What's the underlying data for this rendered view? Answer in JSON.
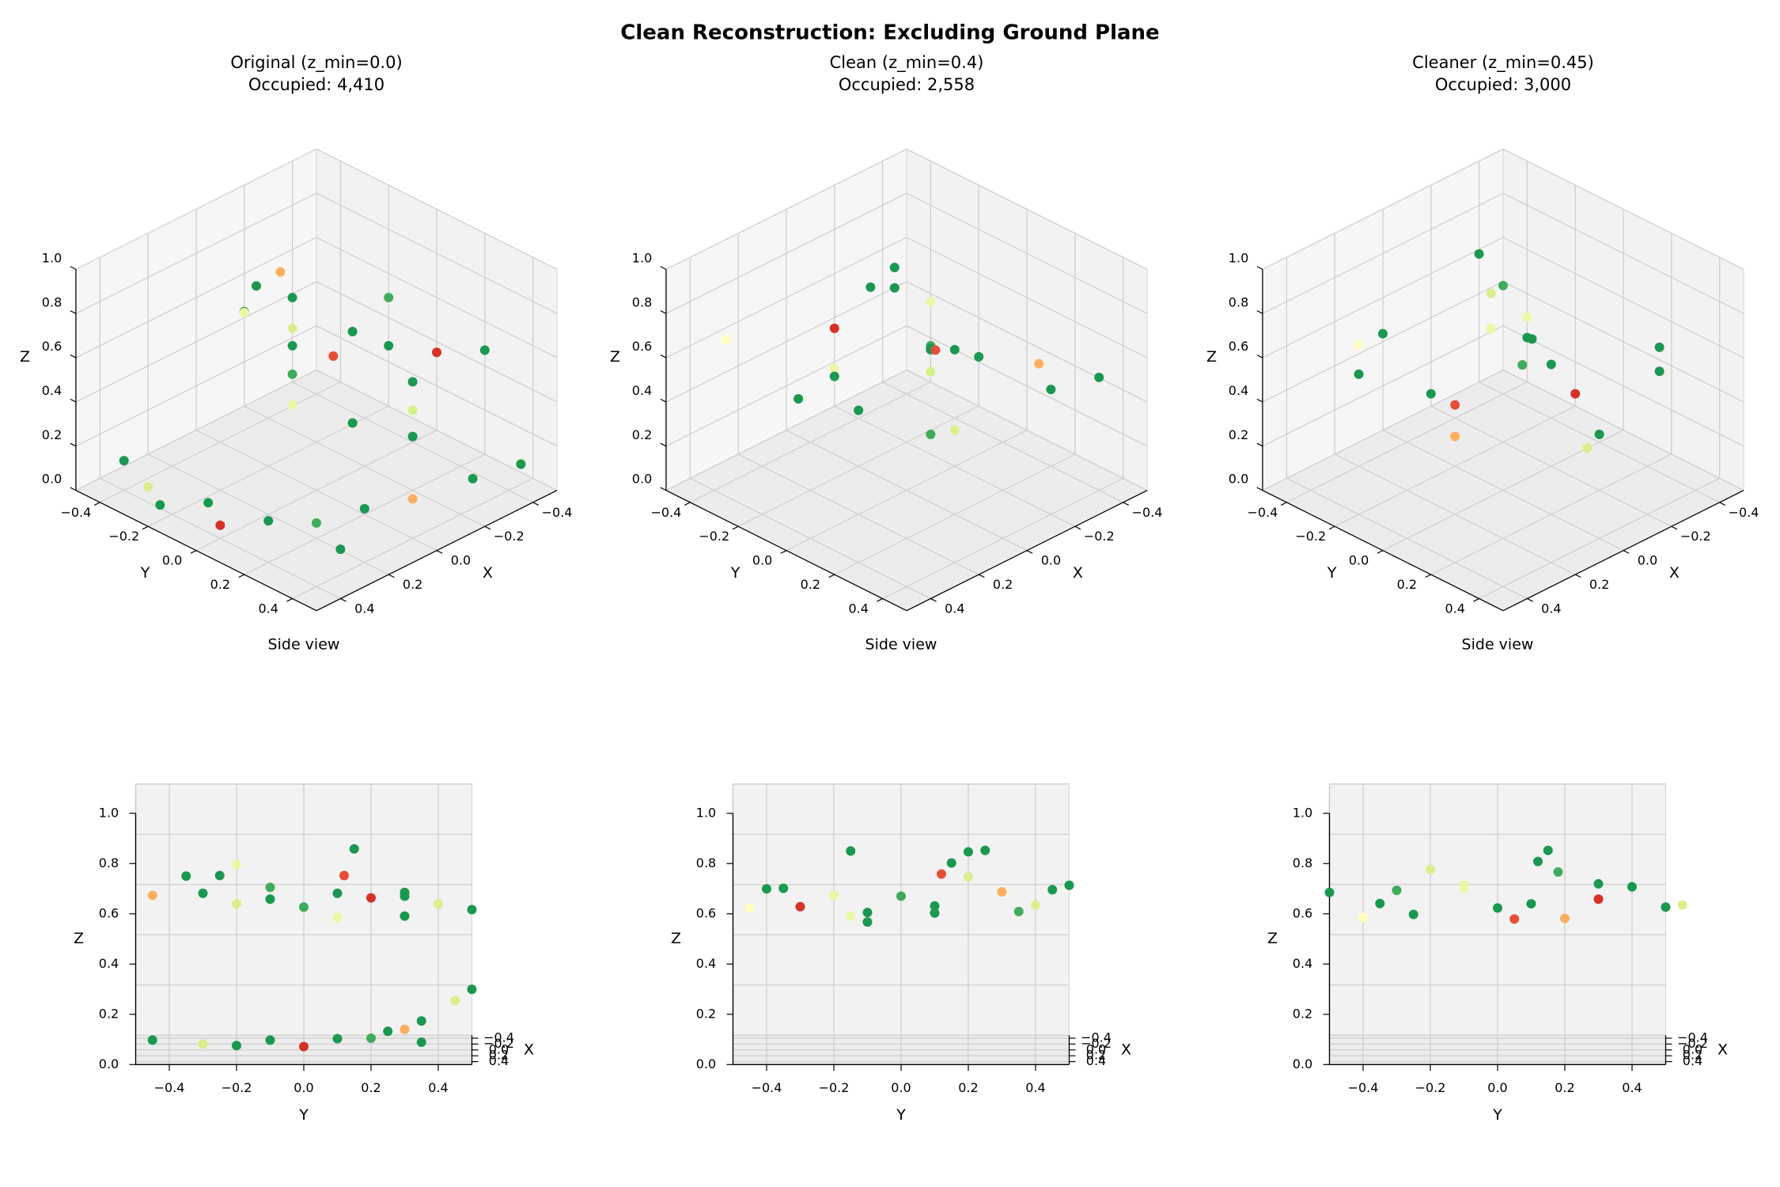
{
  "title": "Clean Reconstruction: Excluding Ground Plane",
  "colormap": [
    "#a50026",
    "#d73027",
    "#f46d43",
    "#fdae61",
    "#fee08b",
    "#ffffbf",
    "#d9ef8b",
    "#a6d96a",
    "#66bd63",
    "#1a9850",
    "#006837"
  ],
  "chart_data": [
    {
      "type": "scatter3d",
      "title": "Original (z_min=0.0)",
      "subtitle": "Occupied: 4,410",
      "xlabel": "X",
      "ylabel": "Y",
      "zlabel": "Z",
      "views": [
        {
          "elev": 30,
          "azim": 45
        },
        {
          "elev": 5,
          "azim": 0,
          "title": "Side view"
        }
      ],
      "xlim": [
        -0.5,
        0.5
      ],
      "ylim": [
        -0.5,
        0.5
      ],
      "zlim": [
        0,
        1
      ],
      "xticks": [
        {
          "value": -0.4,
          "label": "−0.4"
        },
        {
          "value": -0.2,
          "label": "−0.2"
        },
        {
          "value": 0,
          "label": "0.0"
        },
        0.2,
        0.4
      ],
      "yticks": [
        {
          "value": -0.4,
          "label": "−0.4"
        },
        {
          "value": -0.2,
          "label": "−0.2"
        },
        {
          "value": 0,
          "label": "0.0"
        },
        0.2,
        0.4
      ],
      "zticks": [
        {
          "value": 0,
          "label": "0.0"
        },
        0.2,
        0.4,
        0.6,
        0.8,
        {
          "value": 1,
          "label": "1.0"
        }
      ],
      "x": [
        -0.3,
        -0.2,
        -0.1,
        0.0,
        0.1,
        -0.2,
        -0.3,
        -0.1,
        0.0,
        0.1,
        -0.4,
        -0.4,
        0.05,
        0.1,
        0.0,
        0.05,
        -0.1,
        0.15,
        0.2,
        0.35,
        0.4,
        0.35,
        0.4,
        0.3,
        0.2,
        0.05,
        -0.1,
        -0.3,
        -0.4,
        -0.35,
        0.45,
        0.25
      ],
      "y": [
        -0.45,
        -0.3,
        -0.2,
        -0.1,
        0.0,
        0.1,
        0.2,
        0.3,
        0.4,
        0.5,
        -0.1,
        0.3,
        -0.25,
        -0.2,
        0.15,
        0.12,
        -0.35,
        0.3,
        0.1,
        -0.45,
        -0.3,
        -0.1,
        0.0,
        0.1,
        0.2,
        0.25,
        0.3,
        0.35,
        0.45,
        0.5,
        -0.2,
        0.35
      ],
      "z": [
        0.58,
        0.6,
        0.57,
        0.6,
        0.58,
        0.6,
        0.57,
        0.6,
        0.58,
        0.57,
        0.6,
        0.58,
        0.7,
        0.75,
        0.8,
        0.7,
        0.68,
        0.55,
        0.55,
        0.08,
        0.07,
        0.08,
        0.06,
        0.08,
        0.07,
        0.08,
        0.07,
        0.08,
        0.15,
        0.2,
        0.07,
        0.06
      ],
      "c": [
        0.3,
        0.9,
        0.6,
        0.9,
        0.85,
        0.9,
        0.1,
        0.9,
        0.6,
        0.9,
        0.85,
        0.9,
        0.9,
        0.55,
        0.9,
        0.15,
        0.9,
        0.9,
        0.55,
        0.9,
        0.6,
        0.9,
        0.1,
        0.9,
        0.85,
        0.9,
        0.3,
        0.9,
        0.6,
        0.9,
        0.9,
        0.9
      ]
    },
    {
      "type": "scatter3d",
      "title": "Clean (z_min=0.4)",
      "subtitle": "Occupied: 2,558",
      "xlabel": "X",
      "ylabel": "Y",
      "zlabel": "Z",
      "views": [
        {
          "elev": 30,
          "azim": 45
        },
        {
          "elev": 5,
          "azim": 0,
          "title": "Side view"
        }
      ],
      "xlim": [
        -0.5,
        0.5
      ],
      "ylim": [
        -0.5,
        0.5
      ],
      "zlim": [
        0,
        1
      ],
      "xticks": [
        {
          "value": -0.4,
          "label": "−0.4"
        },
        {
          "value": -0.2,
          "label": "−0.2"
        },
        {
          "value": 0,
          "label": "0.0"
        },
        0.2,
        0.4
      ],
      "yticks": [
        {
          "value": -0.4,
          "label": "−0.4"
        },
        {
          "value": -0.2,
          "label": "−0.2"
        },
        {
          "value": 0,
          "label": "0.0"
        },
        0.2,
        0.4
      ],
      "zticks": [
        {
          "value": 0,
          "label": "0.0"
        },
        0.2,
        0.4,
        0.6,
        0.8,
        {
          "value": 1,
          "label": "1.0"
        }
      ],
      "x": [
        -0.35,
        -0.3,
        -0.2,
        -0.1,
        0.0,
        0.1,
        0.2,
        0.3,
        0.35,
        -0.25,
        -0.15,
        0.05,
        0.15,
        0.25,
        0.0,
        -0.1,
        0.1,
        0.05,
        -0.3,
        0.3,
        0.2,
        -0.2
      ],
      "y": [
        -0.4,
        -0.2,
        -0.35,
        0.0,
        -0.3,
        0.2,
        0.4,
        0.1,
        -0.1,
        0.3,
        0.45,
        0.15,
        -0.15,
        0.35,
        0.12,
        -0.15,
        0.2,
        0.25,
        0.5,
        -0.45,
        -0.1,
        0.1
      ],
      "z": [
        0.6,
        0.58,
        0.62,
        0.6,
        0.57,
        0.8,
        0.6,
        0.58,
        0.55,
        0.6,
        0.62,
        0.75,
        0.55,
        0.58,
        0.7,
        0.78,
        0.7,
        0.8,
        0.62,
        0.6,
        0.57,
        0.55
      ],
      "c": [
        0.9,
        0.55,
        0.9,
        0.85,
        0.1,
        0.9,
        0.6,
        0.9,
        0.9,
        0.3,
        0.9,
        0.9,
        0.55,
        0.85,
        0.15,
        0.9,
        0.6,
        0.9,
        0.9,
        0.5,
        0.9,
        0.9
      ]
    },
    {
      "type": "scatter3d",
      "title": "Cleaner (z_min=0.45)",
      "subtitle": "Occupied: 3,000",
      "xlabel": "X",
      "ylabel": "Y",
      "zlabel": "Z",
      "views": [
        {
          "elev": 30,
          "azim": 45
        },
        {
          "elev": 5,
          "azim": 0,
          "title": "Side view"
        }
      ],
      "xlim": [
        -0.5,
        0.5
      ],
      "ylim": [
        -0.5,
        0.5
      ],
      "zlim": [
        0,
        1
      ],
      "xticks": [
        {
          "value": -0.4,
          "label": "−0.4"
        },
        {
          "value": -0.2,
          "label": "−0.2"
        },
        {
          "value": 0,
          "label": "0.0"
        },
        0.2,
        0.4
      ],
      "yticks": [
        {
          "value": -0.4,
          "label": "−0.4"
        },
        {
          "value": -0.2,
          "label": "−0.2"
        },
        {
          "value": 0,
          "label": "0.0"
        },
        0.2,
        0.4
      ],
      "zticks": [
        {
          "value": 0,
          "label": "0.0"
        },
        0.2,
        0.4,
        0.6,
        0.8,
        {
          "value": 1,
          "label": "1.0"
        }
      ],
      "x": [
        -0.4,
        -0.3,
        -0.2,
        -0.1,
        0.0,
        0.1,
        0.2,
        0.3,
        0.4,
        -0.25,
        -0.15,
        0.05,
        0.15,
        0.25,
        0.0,
        -0.05,
        0.1,
        -0.35,
        0.35,
        0.2
      ],
      "y": [
        -0.5,
        -0.3,
        -0.1,
        0.1,
        0.3,
        0.5,
        -0.4,
        0.0,
        0.2,
        0.4,
        -0.2,
        0.15,
        -0.35,
        0.05,
        0.12,
        -0.1,
        0.18,
        0.3,
        -0.25,
        0.55
      ],
      "z": [
        0.58,
        0.6,
        0.62,
        0.57,
        0.6,
        0.58,
        0.55,
        0.6,
        0.57,
        0.62,
        0.7,
        0.8,
        0.6,
        0.55,
        0.75,
        0.65,
        0.72,
        0.62,
        0.58,
        0.6
      ],
      "c": [
        0.9,
        0.85,
        0.55,
        0.9,
        0.1,
        0.9,
        0.5,
        0.9,
        0.3,
        0.9,
        0.6,
        0.9,
        0.9,
        0.15,
        0.9,
        0.55,
        0.85,
        0.9,
        0.9,
        0.6
      ]
    }
  ]
}
